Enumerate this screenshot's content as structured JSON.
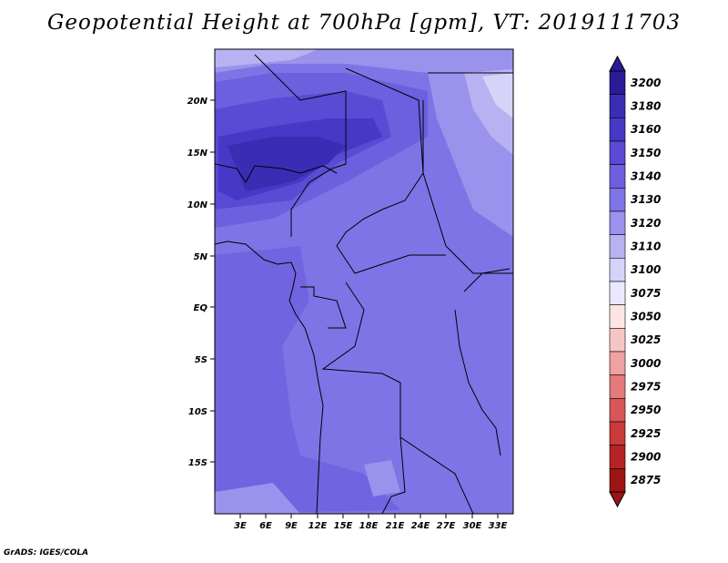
{
  "title": "Geopotential Height at 700hPa [gpm], VT: 2019111703",
  "credit": "GrADS: IGES/COLA",
  "map": {
    "lat_labels": [
      "20N",
      "15N",
      "10N",
      "5N",
      "EQ",
      "5S",
      "10S",
      "15S"
    ],
    "lon_labels": [
      "3E",
      "6E",
      "9E",
      "12E",
      "15E",
      "18E",
      "21E",
      "24E",
      "27E",
      "30E",
      "33E"
    ]
  },
  "colorbar": {
    "levels": [
      "3200",
      "3180",
      "3160",
      "3150",
      "3140",
      "3130",
      "3120",
      "3110",
      "3100",
      "3075",
      "3050",
      "3025",
      "3000",
      "2975",
      "2950",
      "2925",
      "2900",
      "2875"
    ],
    "colors": [
      "#2b1b96",
      "#3a2db4",
      "#4838c6",
      "#5a4ad4",
      "#6d5fde",
      "#7f74e6",
      "#9a92ec",
      "#b8b2f2",
      "#d6d3f8",
      "#eae8fc",
      "#fbe5e5",
      "#f6c6c6",
      "#eea2a2",
      "#e37a7a",
      "#d75656",
      "#c93a3a",
      "#b52424",
      "#9e1414"
    ]
  }
}
